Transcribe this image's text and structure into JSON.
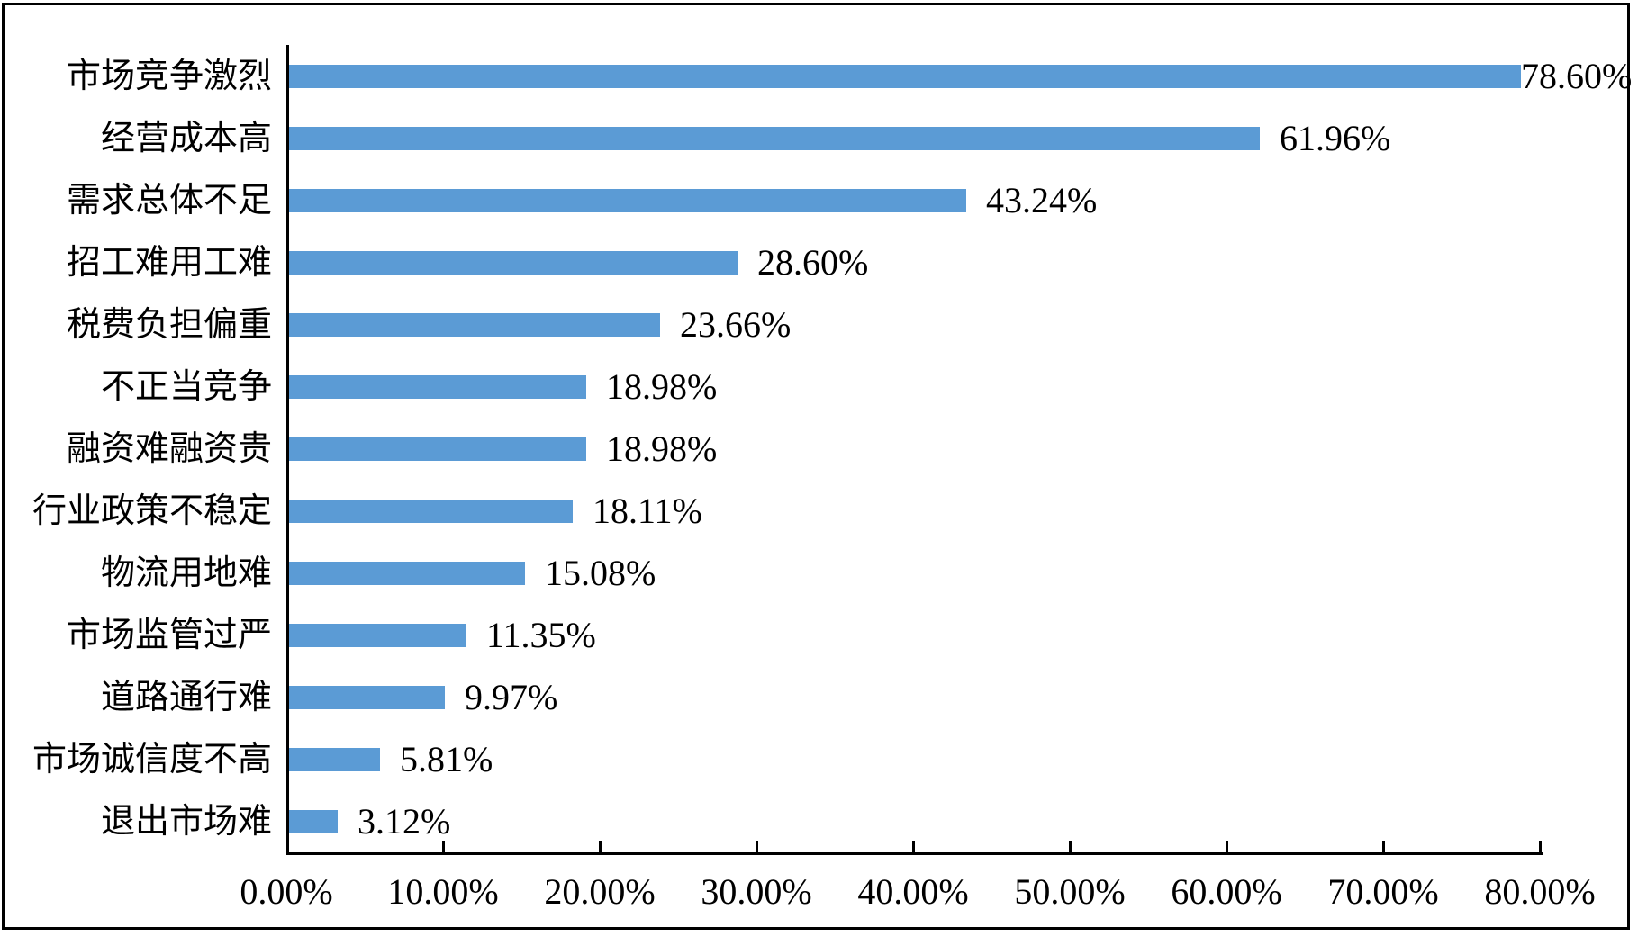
{
  "chart_data": {
    "type": "bar",
    "orientation": "horizontal",
    "title": "",
    "xlabel": "",
    "ylabel": "",
    "categories": [
      "市场竞争激烈",
      "经营成本高",
      "需求总体不足",
      "招工难用工难",
      "税费负担偏重",
      "不正当竞争",
      "融资难融资贵",
      "行业政策不稳定",
      "物流用地难",
      "市场监管过严",
      "道路通行难",
      "市场诚信度不高",
      "退出市场难"
    ],
    "values": [
      78.6,
      61.96,
      43.24,
      28.6,
      23.66,
      18.98,
      18.98,
      18.11,
      15.08,
      11.35,
      9.97,
      5.81,
      3.12
    ],
    "value_labels": [
      "78.60%",
      "61.96%",
      "43.24%",
      "28.60%",
      "23.66%",
      "18.98%",
      "18.98%",
      "18.11%",
      "15.08%",
      "11.35%",
      "9.97%",
      "5.81%",
      "3.12%"
    ],
    "xlim": [
      0,
      80
    ],
    "x_tick_step": 10,
    "x_tick_labels": [
      "0.00%",
      "10.00%",
      "20.00%",
      "30.00%",
      "40.00%",
      "50.00%",
      "60.00%",
      "70.00%",
      "80.00%"
    ],
    "grid": false,
    "legend": false,
    "bar_color": "#5B9BD5",
    "axis_color": "#000000",
    "text_color": "#000000",
    "frame_color": "#000000"
  }
}
